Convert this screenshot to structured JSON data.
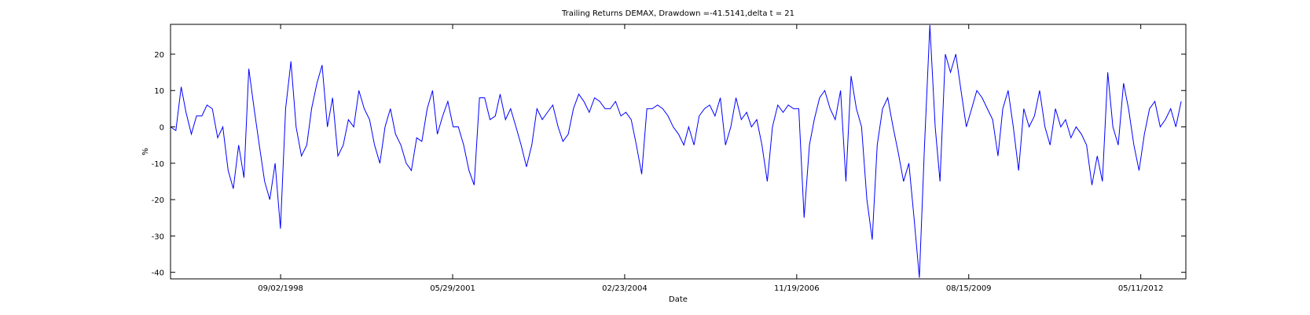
{
  "chart_data": {
    "type": "line",
    "title": "Trailing Returns DEMAX, Drawdown =-41.5141,delta t = 21",
    "xlabel": "Date",
    "ylabel": "%",
    "color": "#0000ff",
    "xlim": [
      "12/01/1996",
      "01/28/2013"
    ],
    "xticks": [
      "09/02/1998",
      "05/29/2001",
      "02/23/2004",
      "11/19/2006",
      "08/15/2009",
      "05/11/2012"
    ],
    "ylim": [
      -41.8,
      28.2
    ],
    "yticks": [
      -40,
      -30,
      -20,
      -10,
      0,
      10,
      20
    ],
    "x": [
      "12/01/1996",
      "01/01/1997",
      "02/01/1997",
      "03/01/1997",
      "04/01/1997",
      "05/01/1997",
      "06/01/1997",
      "07/01/1997",
      "08/01/1997",
      "09/01/1997",
      "10/01/1997",
      "11/01/1997",
      "12/01/1997",
      "01/01/1998",
      "02/01/1998",
      "03/01/1998",
      "04/01/1998",
      "05/01/1998",
      "06/01/1998",
      "07/01/1998",
      "08/01/1998",
      "09/01/1998",
      "10/01/1998",
      "11/01/1998",
      "12/01/1998",
      "01/01/1999",
      "02/01/1999",
      "03/01/1999",
      "04/01/1999",
      "05/01/1999",
      "06/01/1999",
      "07/01/1999",
      "08/01/1999",
      "09/01/1999",
      "10/01/1999",
      "11/01/1999",
      "12/01/1999",
      "01/01/2000",
      "02/01/2000",
      "03/01/2000",
      "04/01/2000",
      "05/01/2000",
      "06/01/2000",
      "07/01/2000",
      "08/01/2000",
      "09/01/2000",
      "10/01/2000",
      "11/01/2000",
      "12/01/2000",
      "01/01/2001",
      "02/01/2001",
      "03/01/2001",
      "04/01/2001",
      "05/01/2001",
      "06/01/2001",
      "07/01/2001",
      "08/01/2001",
      "09/01/2001",
      "10/01/2001",
      "11/01/2001",
      "12/01/2001",
      "01/01/2002",
      "02/01/2002",
      "03/01/2002",
      "04/01/2002",
      "05/01/2002",
      "06/01/2002",
      "07/01/2002",
      "08/01/2002",
      "09/01/2002",
      "10/01/2002",
      "11/01/2002",
      "12/01/2002",
      "01/01/2003",
      "02/01/2003",
      "03/01/2003",
      "04/01/2003",
      "05/01/2003",
      "06/01/2003",
      "07/01/2003",
      "08/01/2003",
      "09/01/2003",
      "10/01/2003",
      "11/01/2003",
      "12/01/2003",
      "01/01/2004",
      "02/01/2004",
      "03/01/2004",
      "04/01/2004",
      "05/01/2004",
      "06/01/2004",
      "07/01/2004",
      "08/01/2004",
      "09/01/2004",
      "10/01/2004",
      "11/01/2004",
      "12/01/2004",
      "01/01/2005",
      "02/01/2005",
      "03/01/2005",
      "04/01/2005",
      "05/01/2005",
      "06/01/2005",
      "07/01/2005",
      "08/01/2005",
      "09/01/2005",
      "10/01/2005",
      "11/01/2005",
      "12/01/2005",
      "01/01/2006",
      "02/01/2006",
      "03/01/2006",
      "04/01/2006",
      "05/01/2006",
      "06/01/2006",
      "07/01/2006",
      "08/01/2006",
      "09/01/2006",
      "10/01/2006",
      "11/01/2006",
      "12/01/2006",
      "01/01/2007",
      "02/01/2007",
      "03/01/2007",
      "04/01/2007",
      "05/01/2007",
      "06/01/2007",
      "07/01/2007",
      "08/01/2007",
      "09/01/2007",
      "10/01/2007",
      "11/01/2007",
      "12/01/2007",
      "01/01/2008",
      "02/01/2008",
      "03/01/2008",
      "04/01/2008",
      "05/01/2008",
      "06/01/2008",
      "07/01/2008",
      "08/01/2008",
      "09/01/2008",
      "10/01/2008",
      "11/01/2008",
      "12/01/2008",
      "01/01/2009",
      "02/01/2009",
      "03/01/2009",
      "04/01/2009",
      "05/01/2009",
      "06/01/2009",
      "07/01/2009",
      "08/01/2009",
      "09/01/2009",
      "10/01/2009",
      "11/01/2009",
      "12/01/2009",
      "01/01/2010",
      "02/01/2010",
      "03/01/2010",
      "04/01/2010",
      "05/01/2010",
      "06/01/2010",
      "07/01/2010",
      "08/01/2010",
      "09/01/2010",
      "10/01/2010",
      "11/01/2010",
      "12/01/2010",
      "01/01/2011",
      "02/01/2011",
      "03/01/2011",
      "04/01/2011",
      "05/01/2011",
      "06/01/2011",
      "07/01/2011",
      "08/01/2011",
      "09/01/2011",
      "10/01/2011",
      "11/01/2011",
      "12/01/2011",
      "01/01/2012",
      "02/01/2012",
      "03/01/2012",
      "04/01/2012",
      "05/01/2012",
      "06/01/2012",
      "07/01/2012",
      "08/01/2012",
      "09/01/2012",
      "10/01/2012",
      "11/01/2012",
      "12/01/2012",
      "01/01/2013"
    ],
    "values": [
      0,
      -1,
      11,
      4,
      -2,
      3,
      3,
      6,
      5,
      -3,
      0,
      -12,
      -17,
      -5,
      -14,
      16,
      5,
      -5,
      -15,
      -20,
      -10,
      -28,
      5,
      18,
      0,
      -8,
      -5,
      5,
      12,
      17,
      0,
      8,
      -8,
      -5,
      2,
      0,
      10,
      5,
      2,
      -5,
      -10,
      0,
      5,
      -2,
      -5,
      -10,
      -12,
      -3,
      -4,
      5,
      10,
      -2,
      3,
      7,
      0,
      0,
      -5,
      -12,
      -16,
      8,
      8,
      2,
      3,
      9,
      2,
      5,
      0,
      -5,
      -11,
      -5,
      5,
      2,
      4,
      6,
      0,
      -4,
      -2,
      5,
      9,
      7,
      4,
      8,
      7,
      5,
      5,
      7,
      3,
      4,
      2,
      -5,
      -13,
      5,
      5,
      6,
      5,
      3,
      0,
      -2,
      -5,
      0,
      -5,
      3,
      5,
      6,
      3,
      8,
      -5,
      0,
      8,
      2,
      4,
      0,
      2,
      -5,
      -15,
      0,
      6,
      4,
      6,
      5,
      5,
      -25,
      -5,
      2,
      8,
      10,
      5,
      2,
      10,
      -15,
      14,
      5,
      0,
      -20,
      -31,
      -5,
      5,
      8,
      0,
      -7,
      -15,
      -10,
      -25,
      -41.5,
      -5,
      28,
      0,
      -15,
      20,
      15,
      20,
      10,
      0,
      5,
      10,
      8,
      5,
      2,
      -8,
      5,
      10,
      0,
      -12,
      5,
      0,
      3,
      10,
      0,
      -5,
      5,
      0,
      2,
      -3,
      0,
      -2,
      -5,
      -16,
      -8,
      -15,
      15,
      0,
      -5,
      12,
      5,
      -5,
      -12,
      -2,
      5,
      7,
      0,
      2,
      5,
      0,
      7
    ]
  }
}
